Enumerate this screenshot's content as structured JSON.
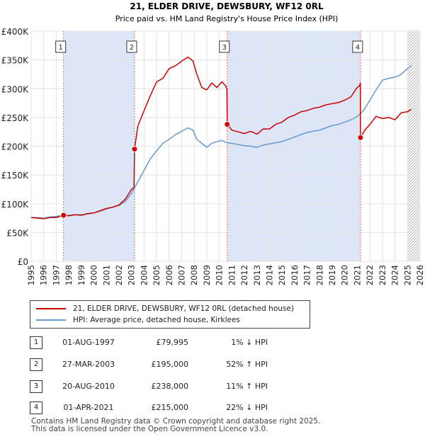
{
  "chart_data": {
    "type": "line",
    "title": "21, ELDER DRIVE, DEWSBURY, WF12 0RL",
    "subtitle": "Price paid vs. HM Land Registry's House Price Index (HPI)",
    "ylim": [
      0,
      400000
    ],
    "xlim": [
      1995.0,
      2026.0
    ],
    "y_ticks": [
      0,
      50000,
      100000,
      150000,
      200000,
      250000,
      300000,
      350000,
      400000
    ],
    "y_tick_labels": [
      "£0",
      "£50K",
      "£100K",
      "£150K",
      "£200K",
      "£250K",
      "£300K",
      "£350K",
      "£400K"
    ],
    "x_ticks": [
      1995,
      1996,
      1997,
      1998,
      1999,
      2000,
      2001,
      2002,
      2003,
      2004,
      2005,
      2006,
      2007,
      2008,
      2009,
      2010,
      2011,
      2012,
      2013,
      2014,
      2015,
      2016,
      2017,
      2018,
      2019,
      2020,
      2021,
      2022,
      2023,
      2024,
      2025,
      2026
    ],
    "x_tick_labels": [
      "1995",
      "1996",
      "1997",
      "1998",
      "1999",
      "2000",
      "2001",
      "2002",
      "2003",
      "2004",
      "2005",
      "2006",
      "2007",
      "2008",
      "2009",
      "2010",
      "2011",
      "2012",
      "2013",
      "2014",
      "2015",
      "2016",
      "2017",
      "2018",
      "2019",
      "2020",
      "2021",
      "2022",
      "2023",
      "2024",
      "2025",
      "2026"
    ],
    "shaded_spans": [
      [
        1997.58,
        2003.24
      ],
      [
        2010.63,
        2021.25
      ]
    ],
    "hatched_from": 2025.0,
    "series": [
      {
        "name": "21, ELDER DRIVE, DEWSBURY, WF12 0RL (detached house)",
        "color": "#cc0000",
        "x": [
          1995.0,
          1995.5,
          1996.0,
          1996.5,
          1997.0,
          1997.58,
          1998.0,
          1998.5,
          1999.0,
          1999.5,
          2000.0,
          2000.5,
          2001.0,
          2001.5,
          2002.0,
          2002.5,
          2003.0,
          2003.2,
          2003.24,
          2003.5,
          2004.0,
          2004.5,
          2005.0,
          2005.5,
          2006.0,
          2006.5,
          2007.0,
          2007.5,
          2007.9,
          2008.2,
          2008.6,
          2009.0,
          2009.4,
          2009.8,
          2010.2,
          2010.5,
          2010.6,
          2010.63,
          2011.0,
          2011.5,
          2012.0,
          2012.5,
          2013.0,
          2013.5,
          2014.0,
          2014.5,
          2015.0,
          2015.5,
          2016.0,
          2016.5,
          2017.0,
          2017.5,
          2018.0,
          2018.5,
          2019.0,
          2019.5,
          2020.0,
          2020.5,
          2020.9,
          2021.2,
          2021.24,
          2021.25,
          2021.6,
          2022.0,
          2022.5,
          2023.0,
          2023.5,
          2024.0,
          2024.5,
          2025.0,
          2025.3
        ],
        "values": [
          76000,
          75000,
          74000,
          76000,
          76000,
          79995,
          79000,
          81000,
          80000,
          83000,
          84000,
          88000,
          92000,
          94000,
          98000,
          108000,
          125000,
          128000,
          195000,
          235000,
          262000,
          288000,
          312000,
          318000,
          335000,
          340000,
          348000,
          355000,
          348000,
          325000,
          302000,
          298000,
          310000,
          302000,
          312000,
          305000,
          300000,
          238000,
          228000,
          225000,
          222000,
          226000,
          221000,
          230000,
          230000,
          238000,
          242000,
          250000,
          254000,
          260000,
          262000,
          266000,
          268000,
          272000,
          274000,
          276000,
          280000,
          286000,
          300000,
          306000,
          310000,
          215000,
          228000,
          238000,
          252000,
          248000,
          250000,
          246000,
          258000,
          260000,
          264000
        ]
      },
      {
        "name": "HPI: Average price, detached house, Kirklees",
        "color": "#6699cc",
        "x": [
          1995.0,
          1995.5,
          1996.0,
          1996.5,
          1997.0,
          1997.5,
          1998.0,
          1998.5,
          1999.0,
          1999.5,
          2000.0,
          2000.5,
          2001.0,
          2001.5,
          2002.0,
          2002.5,
          2003.0,
          2003.5,
          2004.0,
          2004.5,
          2005.0,
          2005.5,
          2006.0,
          2006.5,
          2007.0,
          2007.5,
          2007.9,
          2008.2,
          2008.6,
          2009.0,
          2009.4,
          2009.8,
          2010.2,
          2010.6,
          2011.0,
          2011.5,
          2012.0,
          2012.5,
          2013.0,
          2013.5,
          2014.0,
          2014.5,
          2015.0,
          2015.5,
          2016.0,
          2016.5,
          2017.0,
          2017.5,
          2018.0,
          2018.5,
          2019.0,
          2019.5,
          2020.0,
          2020.5,
          2021.0,
          2021.5,
          2022.0,
          2022.5,
          2023.0,
          2023.5,
          2024.0,
          2024.5,
          2025.0,
          2025.3
        ],
        "values": [
          76000,
          76000,
          75000,
          77000,
          78000,
          80000,
          80000,
          81000,
          81000,
          82000,
          84000,
          87000,
          91000,
          94000,
          97000,
          104000,
          118000,
          138000,
          158000,
          178000,
          192000,
          205000,
          212000,
          220000,
          226000,
          232000,
          228000,
          212000,
          205000,
          198000,
          205000,
          208000,
          210000,
          206000,
          205000,
          203000,
          201000,
          200000,
          198000,
          202000,
          204000,
          206000,
          208000,
          212000,
          216000,
          220000,
          224000,
          226000,
          228000,
          232000,
          236000,
          238000,
          242000,
          246000,
          252000,
          262000,
          280000,
          298000,
          315000,
          318000,
          320000,
          325000,
          335000,
          340000
        ]
      }
    ],
    "markers": [
      {
        "label": "1",
        "x": 1997.58,
        "y": 79995
      },
      {
        "label": "2",
        "x": 2003.24,
        "y": 195000
      },
      {
        "label": "3",
        "x": 2010.63,
        "y": 238000
      },
      {
        "label": "4",
        "x": 2021.25,
        "y": 215000
      }
    ]
  },
  "legend": {
    "items": [
      {
        "label": "21, ELDER DRIVE, DEWSBURY, WF12 0RL (detached house)",
        "color": "#cc0000"
      },
      {
        "label": "HPI: Average price, detached house, Kirklees",
        "color": "#6699cc"
      }
    ]
  },
  "sales": [
    {
      "num": "1",
      "date": "01-AUG-1997",
      "price": "£79,995",
      "hpi": "1% ↓ HPI"
    },
    {
      "num": "2",
      "date": "27-MAR-2003",
      "price": "£195,000",
      "hpi": "52% ↑ HPI"
    },
    {
      "num": "3",
      "date": "20-AUG-2010",
      "price": "£238,000",
      "hpi": "11% ↑ HPI"
    },
    {
      "num": "4",
      "date": "01-APR-2021",
      "price": "£215,000",
      "hpi": "22% ↓ HPI"
    }
  ],
  "footer": {
    "line1": "Contains HM Land Registry data © Crown copyright and database right 2025.",
    "line2": "This data is licensed under the Open Government Licence v3.0."
  }
}
